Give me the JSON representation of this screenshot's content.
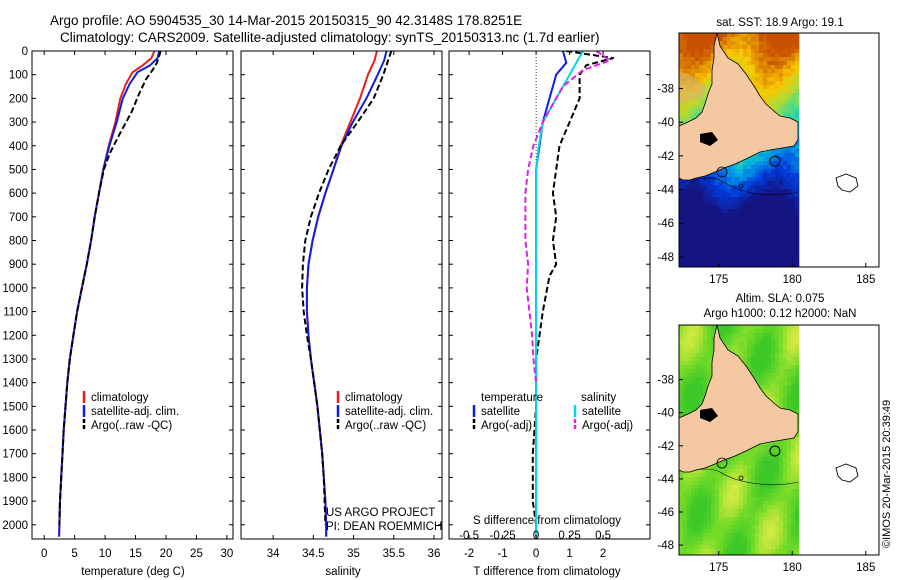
{
  "header": {
    "line1": "Argo profile: AO 5904535_30 14-Mar-2015 20150315_90 42.3148S 178.8251E",
    "line2": "Climatology: CARS2009. Satellite-adjusted climatology: synTS_20150313.nc (1.7d earlier)"
  },
  "colors": {
    "climatology": "#e81e1e",
    "satellite": "#1020e0",
    "argo": "#000000",
    "sat_temp_diff": "#00d8e8",
    "argo_salt_diff": "#e020e0",
    "land": "#f4c8a0"
  },
  "chart_data": [
    {
      "type": "line",
      "panel": "temperature",
      "xlabel": "temperature (deg C)",
      "ylabel": "",
      "xlim": [
        -2,
        31
      ],
      "ylim": [
        2060,
        0
      ],
      "xticks": [
        0,
        5,
        10,
        15,
        20,
        25,
        30
      ],
      "yticks": [
        0,
        100,
        200,
        300,
        400,
        500,
        600,
        700,
        800,
        900,
        1000,
        1100,
        1200,
        1300,
        1400,
        1500,
        1600,
        1700,
        1800,
        1900,
        2000
      ],
      "legend": [
        "climatology",
        "satellite-adj. clim.",
        "Argo(..raw -QC)"
      ],
      "series": [
        {
          "name": "climatology",
          "style": "solid",
          "color": "#e81e1e",
          "points": [
            [
              18.1,
              0
            ],
            [
              17.6,
              30
            ],
            [
              16.2,
              60
            ],
            [
              14.5,
              90
            ],
            [
              13.4,
              140
            ],
            [
              12.5,
              200
            ],
            [
              11.7,
              300
            ],
            [
              10.6,
              400
            ],
            [
              9.7,
              500
            ],
            [
              9.0,
              600
            ],
            [
              8.3,
              700
            ],
            [
              7.7,
              800
            ],
            [
              7.0,
              900
            ],
            [
              6.2,
              1000
            ],
            [
              5.4,
              1100
            ],
            [
              4.8,
              1200
            ],
            [
              4.2,
              1300
            ],
            [
              3.8,
              1400
            ],
            [
              3.5,
              1500
            ],
            [
              3.2,
              1600
            ],
            [
              3.0,
              1700
            ],
            [
              2.8,
              1800
            ],
            [
              2.6,
              1900
            ],
            [
              2.5,
              2000
            ],
            [
              2.45,
              2050
            ]
          ]
        },
        {
          "name": "satellite-adj. clim.",
          "style": "solid",
          "color": "#1020e0",
          "points": [
            [
              18.9,
              0
            ],
            [
              18.6,
              30
            ],
            [
              17.4,
              60
            ],
            [
              15.3,
              90
            ],
            [
              14.0,
              140
            ],
            [
              12.9,
              200
            ],
            [
              11.9,
              300
            ],
            [
              10.7,
              400
            ],
            [
              9.7,
              500
            ],
            [
              9.0,
              600
            ],
            [
              8.3,
              700
            ],
            [
              7.7,
              800
            ],
            [
              7.0,
              900
            ],
            [
              6.2,
              1000
            ],
            [
              5.4,
              1100
            ],
            [
              4.8,
              1200
            ],
            [
              4.2,
              1300
            ],
            [
              3.8,
              1400
            ],
            [
              3.5,
              1500
            ],
            [
              3.2,
              1600
            ],
            [
              3.0,
              1700
            ],
            [
              2.8,
              1800
            ],
            [
              2.6,
              1900
            ],
            [
              2.5,
              2000
            ],
            [
              2.45,
              2050
            ]
          ]
        },
        {
          "name": "Argo(..raw -QC)",
          "style": "dashed",
          "color": "#000000",
          "points": [
            [
              19.1,
              0
            ],
            [
              18.9,
              20
            ],
            [
              18.5,
              50
            ],
            [
              17.8,
              80
            ],
            [
              16.7,
              120
            ],
            [
              15.6,
              180
            ],
            [
              14.3,
              260
            ],
            [
              12.4,
              350
            ],
            [
              10.8,
              430
            ],
            [
              9.8,
              500
            ],
            [
              9.0,
              600
            ],
            [
              8.3,
              700
            ],
            [
              7.7,
              800
            ],
            [
              7.0,
              900
            ],
            [
              6.2,
              1000
            ],
            [
              5.4,
              1100
            ],
            [
              4.8,
              1200
            ],
            [
              4.2,
              1300
            ],
            [
              3.8,
              1400
            ],
            [
              3.5,
              1500
            ],
            [
              3.2,
              1600
            ],
            [
              3.0,
              1700
            ],
            [
              2.8,
              1800
            ],
            [
              2.6,
              1900
            ],
            [
              2.5,
              2000
            ]
          ]
        }
      ]
    },
    {
      "type": "line",
      "panel": "salinity",
      "xlabel": "salinity",
      "xlim": [
        33.6,
        36.1
      ],
      "ylim": [
        2060,
        0
      ],
      "xticks": [
        34,
        34.5,
        35,
        35.5,
        36
      ],
      "xticklabels": [
        "34",
        "34.5",
        "35",
        "35.5",
        "36"
      ],
      "legend": [
        "climatology",
        "satellite-adj. clim.",
        "Argo(..raw -QC)"
      ],
      "annotation": [
        "US ARGO PROJECT",
        "PI: DEAN ROEMMICH"
      ],
      "series": [
        {
          "name": "climatology",
          "style": "solid",
          "color": "#e81e1e",
          "points": [
            [
              35.29,
              0
            ],
            [
              35.26,
              40
            ],
            [
              35.18,
              100
            ],
            [
              35.08,
              200
            ],
            [
              34.96,
              300
            ],
            [
              34.84,
              400
            ],
            [
              34.75,
              500
            ],
            [
              34.65,
              600
            ],
            [
              34.56,
              700
            ],
            [
              34.49,
              800
            ],
            [
              34.44,
              900
            ],
            [
              34.42,
              1000
            ],
            [
              34.42,
              1100
            ],
            [
              34.44,
              1200
            ],
            [
              34.47,
              1300
            ],
            [
              34.51,
              1400
            ],
            [
              34.55,
              1500
            ],
            [
              34.58,
              1600
            ],
            [
              34.61,
              1700
            ],
            [
              34.63,
              1800
            ],
            [
              34.65,
              1900
            ],
            [
              34.66,
              2000
            ],
            [
              34.66,
              2050
            ]
          ]
        },
        {
          "name": "satellite-adj. clim.",
          "style": "solid",
          "color": "#1020e0",
          "points": [
            [
              35.41,
              0
            ],
            [
              35.38,
              40
            ],
            [
              35.3,
              100
            ],
            [
              35.16,
              200
            ],
            [
              34.99,
              300
            ],
            [
              34.85,
              400
            ],
            [
              34.75,
              500
            ],
            [
              34.65,
              600
            ],
            [
              34.56,
              700
            ],
            [
              34.49,
              800
            ],
            [
              34.44,
              900
            ],
            [
              34.42,
              1000
            ],
            [
              34.42,
              1100
            ],
            [
              34.44,
              1200
            ],
            [
              34.47,
              1300
            ],
            [
              34.51,
              1400
            ],
            [
              34.55,
              1500
            ],
            [
              34.58,
              1600
            ],
            [
              34.61,
              1700
            ],
            [
              34.63,
              1800
            ],
            [
              34.65,
              1900
            ],
            [
              34.66,
              2000
            ],
            [
              34.66,
              2050
            ]
          ]
        },
        {
          "name": "Argo(..raw -QC)",
          "style": "dashed",
          "color": "#000000",
          "points": [
            [
              35.47,
              0
            ],
            [
              35.43,
              40
            ],
            [
              35.37,
              100
            ],
            [
              35.25,
              200
            ],
            [
              35.05,
              300
            ],
            [
              34.84,
              400
            ],
            [
              34.69,
              500
            ],
            [
              34.57,
              600
            ],
            [
              34.47,
              700
            ],
            [
              34.4,
              800
            ],
            [
              34.37,
              900
            ],
            [
              34.36,
              1000
            ],
            [
              34.38,
              1100
            ],
            [
              34.42,
              1200
            ],
            [
              34.47,
              1300
            ],
            [
              34.51,
              1400
            ],
            [
              34.55,
              1500
            ],
            [
              34.58,
              1600
            ],
            [
              34.61,
              1700
            ],
            [
              34.63,
              1800
            ],
            [
              34.64,
              1900
            ],
            [
              34.65,
              2000
            ]
          ]
        }
      ]
    },
    {
      "type": "line",
      "panel": "difference",
      "xlabel": "T difference from climatology",
      "xlabel_top": "S difference from climatology",
      "xlim": [
        -2.6,
        3.4
      ],
      "ylim": [
        2060,
        0
      ],
      "xticks": [
        -2,
        -1,
        0,
        1,
        2
      ],
      "xticklabels": [
        "-2",
        "-1",
        "0",
        "1",
        "2"
      ],
      "xticks_s": [
        -0.5,
        -0.25,
        0,
        0.25,
        0.5
      ],
      "xticklabels_s": [
        "-0.5",
        "-0.25",
        "0",
        "0.25",
        "0.5"
      ],
      "legend_titles": [
        "temperature",
        "salinity"
      ],
      "legend": [
        "satellite",
        "Argo(-adj)",
        "satellite",
        "Argo(-adj)"
      ],
      "series": [
        {
          "name": "satellite",
          "style": "solid",
          "color": "#1020e0",
          "points": [
            [
              0.8,
              0
            ],
            [
              0.9,
              50
            ],
            [
              0.6,
              100
            ],
            [
              0.4,
              200
            ],
            [
              0.2,
              300
            ],
            [
              0.1,
              400
            ],
            [
              0,
              500
            ],
            [
              0,
              700
            ],
            [
              0,
              900
            ],
            [
              0,
              2050
            ]
          ]
        },
        {
          "name": "Argo(-adj)",
          "style": "dashed",
          "color": "#000000",
          "points": [
            [
              0.9,
              0
            ],
            [
              2.3,
              30
            ],
            [
              1.5,
              60
            ],
            [
              1.3,
              100
            ],
            [
              1.3,
              200
            ],
            [
              1.0,
              300
            ],
            [
              0.7,
              400
            ],
            [
              0.6,
              500
            ],
            [
              0.5,
              600
            ],
            [
              0.6,
              700
            ],
            [
              0.5,
              800
            ],
            [
              0.6,
              900
            ],
            [
              0.4,
              950
            ],
            [
              0.2,
              1100
            ],
            [
              0.1,
              1200
            ],
            [
              0,
              1300
            ],
            [
              0,
              1500
            ],
            [
              -0.1,
              1700
            ],
            [
              -0.1,
              1900
            ],
            [
              0,
              2000
            ]
          ]
        },
        {
          "name": "satellite",
          "style": "solid",
          "color": "#00d8e8",
          "points": [
            [
              0.35,
              0
            ],
            [
              0.3,
              50
            ],
            [
              0.25,
              100
            ],
            [
              0.15,
              200
            ],
            [
              0.05,
              300
            ],
            [
              0.02,
              400
            ],
            [
              0,
              500
            ],
            [
              0,
              2050
            ]
          ]
        },
        {
          "name": "Argo(-adj)",
          "style": "dashed",
          "color": "#e020e0",
          "points": [
            [
              0.45,
              0
            ],
            [
              0.55,
              40
            ],
            [
              0.35,
              80
            ],
            [
              0.2,
              150
            ],
            [
              0.1,
              250
            ],
            [
              0.05,
              300
            ],
            [
              -0.02,
              400
            ],
            [
              -0.06,
              500
            ],
            [
              -0.08,
              600
            ],
            [
              -0.08,
              800
            ],
            [
              -0.06,
              900
            ],
            [
              -0.07,
              1000
            ],
            [
              -0.05,
              1100
            ],
            [
              -0.03,
              1200
            ],
            [
              -0.02,
              1300
            ],
            [
              0,
              1400
            ]
          ]
        }
      ]
    },
    {
      "type": "heatmap",
      "panel": "sst_map",
      "title": "sat. SST: 18.9 Argo: 19.1",
      "xlim": [
        172.3,
        185.9
      ],
      "ylim": [
        -48.6,
        -34.7
      ],
      "xticks": [
        175,
        180,
        185
      ],
      "yticks": [
        -38,
        -40,
        -42,
        -44,
        -46,
        -48
      ],
      "float_position": [
        178.8251,
        -42.3148
      ]
    },
    {
      "type": "heatmap",
      "panel": "sla_map",
      "title": "Altim. SLA: 0.075",
      "subtitle": "Argo h1000: 0.12 h2000: NaN",
      "xlim": [
        172.3,
        185.9
      ],
      "ylim": [
        -48.6,
        -34.7
      ],
      "xticks": [
        175,
        180,
        185
      ],
      "yticks": [
        -38,
        -40,
        -42,
        -44,
        -46,
        -48
      ],
      "float_position": [
        178.8251,
        -42.3148
      ]
    }
  ],
  "footer": {
    "credit": "©IMOS 20-Mar-2015 20:39:49"
  }
}
